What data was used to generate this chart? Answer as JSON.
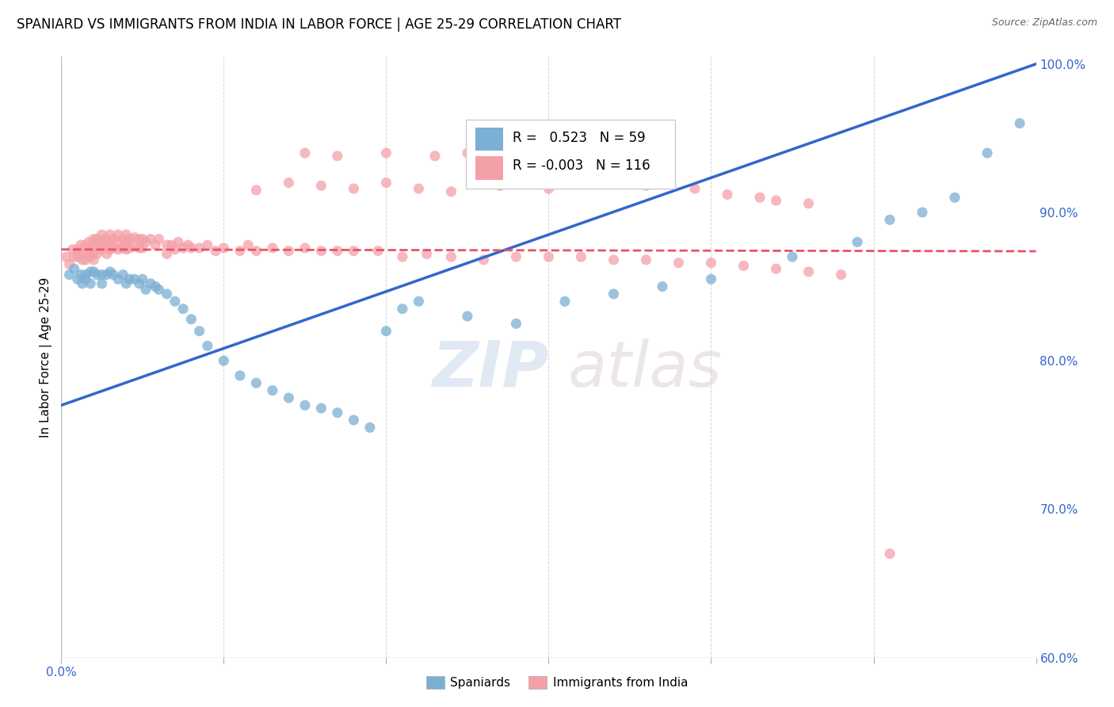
{
  "title": "SPANIARD VS IMMIGRANTS FROM INDIA IN LABOR FORCE | AGE 25-29 CORRELATION CHART",
  "source": "Source: ZipAtlas.com",
  "ylabel": "In Labor Force | Age 25-29",
  "xlim": [
    0.0,
    0.6
  ],
  "ylim": [
    0.6,
    1.005
  ],
  "blue_r": 0.523,
  "blue_n": 59,
  "pink_r": -0.003,
  "pink_n": 116,
  "blue_color": "#7BAFD4",
  "pink_color": "#F4A0A8",
  "blue_line_color": "#3366CC",
  "pink_line_color": "#E8526A",
  "legend_blue_label": "Spaniards",
  "legend_pink_label": "Immigrants from India",
  "watermark_zip": "ZIP",
  "watermark_atlas": "atlas",
  "blue_scatter_x": [
    0.005,
    0.008,
    0.01,
    0.012,
    0.013,
    0.015,
    0.015,
    0.018,
    0.018,
    0.02,
    0.022,
    0.025,
    0.025,
    0.028,
    0.03,
    0.032,
    0.035,
    0.038,
    0.04,
    0.042,
    0.045,
    0.048,
    0.05,
    0.052,
    0.055,
    0.058,
    0.06,
    0.065,
    0.07,
    0.075,
    0.08,
    0.085,
    0.09,
    0.1,
    0.11,
    0.12,
    0.13,
    0.14,
    0.15,
    0.16,
    0.17,
    0.18,
    0.19,
    0.2,
    0.21,
    0.22,
    0.25,
    0.28,
    0.31,
    0.34,
    0.37,
    0.4,
    0.45,
    0.49,
    0.51,
    0.53,
    0.55,
    0.57,
    0.59
  ],
  "blue_scatter_y": [
    0.858,
    0.862,
    0.855,
    0.858,
    0.852,
    0.858,
    0.855,
    0.86,
    0.852,
    0.86,
    0.858,
    0.858,
    0.852,
    0.858,
    0.86,
    0.858,
    0.855,
    0.858,
    0.852,
    0.855,
    0.855,
    0.852,
    0.855,
    0.848,
    0.852,
    0.85,
    0.848,
    0.845,
    0.84,
    0.835,
    0.828,
    0.82,
    0.81,
    0.8,
    0.79,
    0.785,
    0.78,
    0.775,
    0.77,
    0.768,
    0.765,
    0.76,
    0.755,
    0.82,
    0.835,
    0.84,
    0.83,
    0.825,
    0.84,
    0.845,
    0.85,
    0.855,
    0.87,
    0.88,
    0.895,
    0.9,
    0.91,
    0.94,
    0.96
  ],
  "pink_scatter_x": [
    0.003,
    0.005,
    0.007,
    0.008,
    0.01,
    0.01,
    0.012,
    0.013,
    0.013,
    0.015,
    0.015,
    0.015,
    0.017,
    0.018,
    0.018,
    0.02,
    0.02,
    0.02,
    0.02,
    0.022,
    0.022,
    0.022,
    0.025,
    0.025,
    0.025,
    0.027,
    0.028,
    0.028,
    0.03,
    0.03,
    0.03,
    0.032,
    0.032,
    0.035,
    0.035,
    0.035,
    0.038,
    0.038,
    0.04,
    0.04,
    0.04,
    0.042,
    0.042,
    0.045,
    0.045,
    0.048,
    0.048,
    0.05,
    0.05,
    0.052,
    0.055,
    0.058,
    0.06,
    0.065,
    0.065,
    0.068,
    0.07,
    0.072,
    0.075,
    0.078,
    0.08,
    0.085,
    0.09,
    0.095,
    0.1,
    0.11,
    0.115,
    0.12,
    0.13,
    0.14,
    0.15,
    0.16,
    0.17,
    0.18,
    0.195,
    0.21,
    0.225,
    0.24,
    0.26,
    0.28,
    0.3,
    0.32,
    0.34,
    0.36,
    0.38,
    0.4,
    0.42,
    0.44,
    0.46,
    0.48,
    0.12,
    0.14,
    0.16,
    0.18,
    0.2,
    0.22,
    0.24,
    0.27,
    0.3,
    0.33,
    0.36,
    0.39,
    0.41,
    0.43,
    0.44,
    0.46,
    0.15,
    0.17,
    0.2,
    0.23,
    0.25,
    0.27,
    0.3,
    0.33,
    0.36,
    0.51
  ],
  "pink_scatter_y": [
    0.87,
    0.865,
    0.875,
    0.87,
    0.875,
    0.87,
    0.878,
    0.872,
    0.868,
    0.878,
    0.872,
    0.868,
    0.88,
    0.875,
    0.87,
    0.882,
    0.878,
    0.872,
    0.868,
    0.882,
    0.878,
    0.872,
    0.885,
    0.88,
    0.875,
    0.882,
    0.878,
    0.872,
    0.885,
    0.88,
    0.875,
    0.882,
    0.876,
    0.885,
    0.88,
    0.875,
    0.882,
    0.876,
    0.885,
    0.88,
    0.875,
    0.882,
    0.876,
    0.883,
    0.877,
    0.882,
    0.876,
    0.882,
    0.876,
    0.88,
    0.882,
    0.878,
    0.882,
    0.878,
    0.872,
    0.878,
    0.875,
    0.88,
    0.876,
    0.878,
    0.876,
    0.876,
    0.878,
    0.874,
    0.876,
    0.874,
    0.878,
    0.874,
    0.876,
    0.874,
    0.876,
    0.874,
    0.874,
    0.874,
    0.874,
    0.87,
    0.872,
    0.87,
    0.868,
    0.87,
    0.87,
    0.87,
    0.868,
    0.868,
    0.866,
    0.866,
    0.864,
    0.862,
    0.86,
    0.858,
    0.915,
    0.92,
    0.918,
    0.916,
    0.92,
    0.916,
    0.914,
    0.918,
    0.916,
    0.92,
    0.918,
    0.916,
    0.912,
    0.91,
    0.908,
    0.906,
    0.94,
    0.938,
    0.94,
    0.938,
    0.94,
    0.936,
    0.938,
    0.936,
    0.935,
    0.67
  ]
}
